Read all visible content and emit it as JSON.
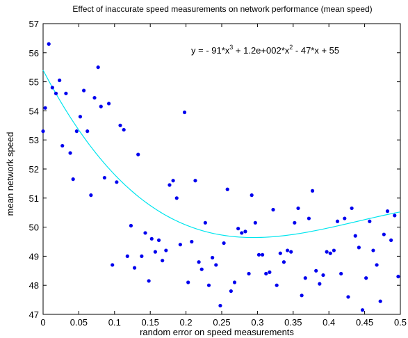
{
  "chart_data": {
    "type": "scatter",
    "title": "Effect of inaccurate speed measurements on network performance (mean speed)",
    "xlabel": "random error on speed measurements",
    "ylabel": "mean network speed",
    "xlim": [
      0,
      0.5
    ],
    "ylim": [
      47,
      57
    ],
    "x_ticks": [
      0,
      0.05,
      0.1,
      0.15,
      0.2,
      0.25,
      0.3,
      0.35,
      0.4,
      0.45,
      0.5
    ],
    "x_tick_labels": [
      "0",
      "0.05",
      "0.1",
      "0.15",
      "0.2",
      "0.25",
      "0.3",
      "0.35",
      "0.4",
      "0.45",
      "0.5"
    ],
    "y_ticks": [
      47,
      48,
      49,
      50,
      51,
      52,
      53,
      54,
      55,
      56,
      57
    ],
    "y_tick_labels": [
      "47",
      "48",
      "49",
      "50",
      "51",
      "52",
      "53",
      "54",
      "55",
      "56",
      "57"
    ],
    "grid": false,
    "point_color": "#0000ee",
    "fit_color": "#00e5ee",
    "equation": {
      "prefix": "y = - 91*x",
      "exp1": "3",
      "mid": " + 1.2e+002*x",
      "exp2": "2",
      "suffix": " - 47*x + 55"
    },
    "fit_coefficients": [
      -91,
      120,
      -47,
      55.4
    ],
    "points": [
      [
        0.0,
        53.3
      ],
      [
        0.003,
        54.1
      ],
      [
        0.008,
        56.3
      ],
      [
        0.013,
        54.8
      ],
      [
        0.018,
        54.6
      ],
      [
        0.023,
        55.05
      ],
      [
        0.027,
        52.8
      ],
      [
        0.032,
        54.6
      ],
      [
        0.038,
        52.55
      ],
      [
        0.042,
        51.65
      ],
      [
        0.047,
        53.3
      ],
      [
        0.052,
        53.8
      ],
      [
        0.057,
        54.7
      ],
      [
        0.062,
        53.3
      ],
      [
        0.067,
        51.1
      ],
      [
        0.072,
        54.45
      ],
      [
        0.077,
        55.5
      ],
      [
        0.081,
        54.15
      ],
      [
        0.086,
        51.7
      ],
      [
        0.092,
        54.25
      ],
      [
        0.097,
        48.7
      ],
      [
        0.103,
        51.55
      ],
      [
        0.108,
        53.5
      ],
      [
        0.113,
        53.35
      ],
      [
        0.118,
        49.0
      ],
      [
        0.123,
        50.05
      ],
      [
        0.128,
        48.6
      ],
      [
        0.133,
        52.5
      ],
      [
        0.138,
        49.0
      ],
      [
        0.143,
        49.8
      ],
      [
        0.148,
        48.15
      ],
      [
        0.152,
        49.6
      ],
      [
        0.157,
        49.15
      ],
      [
        0.162,
        49.55
      ],
      [
        0.167,
        48.85
      ],
      [
        0.172,
        49.2
      ],
      [
        0.177,
        51.45
      ],
      [
        0.182,
        51.6
      ],
      [
        0.187,
        51.0
      ],
      [
        0.192,
        49.4
      ],
      [
        0.198,
        53.95
      ],
      [
        0.203,
        48.1
      ],
      [
        0.208,
        49.5
      ],
      [
        0.213,
        51.6
      ],
      [
        0.218,
        48.8
      ],
      [
        0.222,
        48.55
      ],
      [
        0.227,
        50.15
      ],
      [
        0.232,
        48.0
      ],
      [
        0.237,
        48.95
      ],
      [
        0.242,
        48.7
      ],
      [
        0.248,
        47.3
      ],
      [
        0.253,
        49.45
      ],
      [
        0.258,
        51.3
      ],
      [
        0.263,
        47.8
      ],
      [
        0.268,
        48.1
      ],
      [
        0.273,
        49.95
      ],
      [
        0.278,
        49.8
      ],
      [
        0.283,
        49.85
      ],
      [
        0.288,
        48.4
      ],
      [
        0.292,
        51.1
      ],
      [
        0.297,
        50.15
      ],
      [
        0.302,
        49.05
      ],
      [
        0.307,
        49.05
      ],
      [
        0.312,
        48.4
      ],
      [
        0.317,
        48.45
      ],
      [
        0.322,
        50.6
      ],
      [
        0.327,
        48.0
      ],
      [
        0.332,
        49.1
      ],
      [
        0.337,
        48.8
      ],
      [
        0.342,
        49.2
      ],
      [
        0.347,
        49.15
      ],
      [
        0.352,
        50.15
      ],
      [
        0.357,
        50.65
      ],
      [
        0.362,
        47.65
      ],
      [
        0.367,
        48.25
      ],
      [
        0.372,
        50.3
      ],
      [
        0.377,
        51.25
      ],
      [
        0.382,
        48.5
      ],
      [
        0.387,
        48.05
      ],
      [
        0.392,
        48.35
      ],
      [
        0.397,
        49.15
      ],
      [
        0.402,
        49.1
      ],
      [
        0.407,
        49.2
      ],
      [
        0.412,
        50.2
      ],
      [
        0.417,
        48.4
      ],
      [
        0.422,
        50.3
      ],
      [
        0.427,
        47.6
      ],
      [
        0.432,
        50.65
      ],
      [
        0.437,
        49.7
      ],
      [
        0.442,
        49.3
      ],
      [
        0.447,
        47.15
      ],
      [
        0.452,
        48.25
      ],
      [
        0.457,
        50.2
      ],
      [
        0.462,
        49.2
      ],
      [
        0.467,
        48.7
      ],
      [
        0.472,
        47.45
      ],
      [
        0.477,
        49.75
      ],
      [
        0.482,
        50.55
      ],
      [
        0.487,
        49.55
      ],
      [
        0.492,
        50.4
      ],
      [
        0.497,
        48.3
      ]
    ]
  }
}
